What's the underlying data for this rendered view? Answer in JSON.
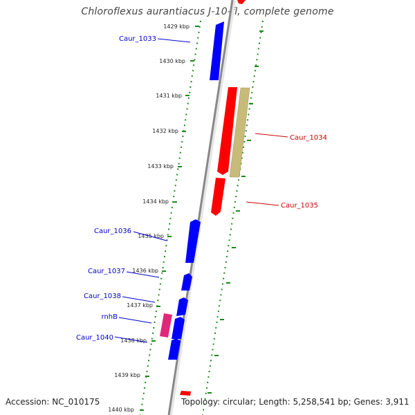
{
  "title": "Chloroflexus aurantiacus J-10-fl, complete genome",
  "footer": {
    "accession": "Accession: NC_010175",
    "topology": "Topology: circular; Length: 5,258,541 bp; Genes: 3,911"
  },
  "colors": {
    "forward_genes": "#0000ff",
    "reverse_genes": "#ff0000",
    "rna_gene": "#e0287a",
    "feature_khaki": "#c8bb7a",
    "dotted_track": "#1a8a1a",
    "backbone": "#888888"
  },
  "scale": {
    "unit": "kbp",
    "ticks": [
      "1429 kbp",
      "1430 kbp",
      "1431 kbp",
      "1432 kbp",
      "1433 kbp",
      "1434 kbp",
      "1435 kbp",
      "1436 kbp",
      "1437 kbp",
      "1438 kbp",
      "1439 kbp",
      "1440 kbp"
    ]
  },
  "genes": [
    {
      "name": "Caur_1033",
      "strand": "forward"
    },
    {
      "name": "Caur_1034",
      "strand": "reverse"
    },
    {
      "name": "Caur_1035",
      "strand": "reverse"
    },
    {
      "name": "Caur_1036",
      "strand": "forward"
    },
    {
      "name": "Caur_1037",
      "strand": "forward"
    },
    {
      "name": "Caur_1038",
      "strand": "forward"
    },
    {
      "name": "rnhB",
      "strand": "forward"
    },
    {
      "name": "Caur_1040",
      "strand": "forward"
    }
  ]
}
